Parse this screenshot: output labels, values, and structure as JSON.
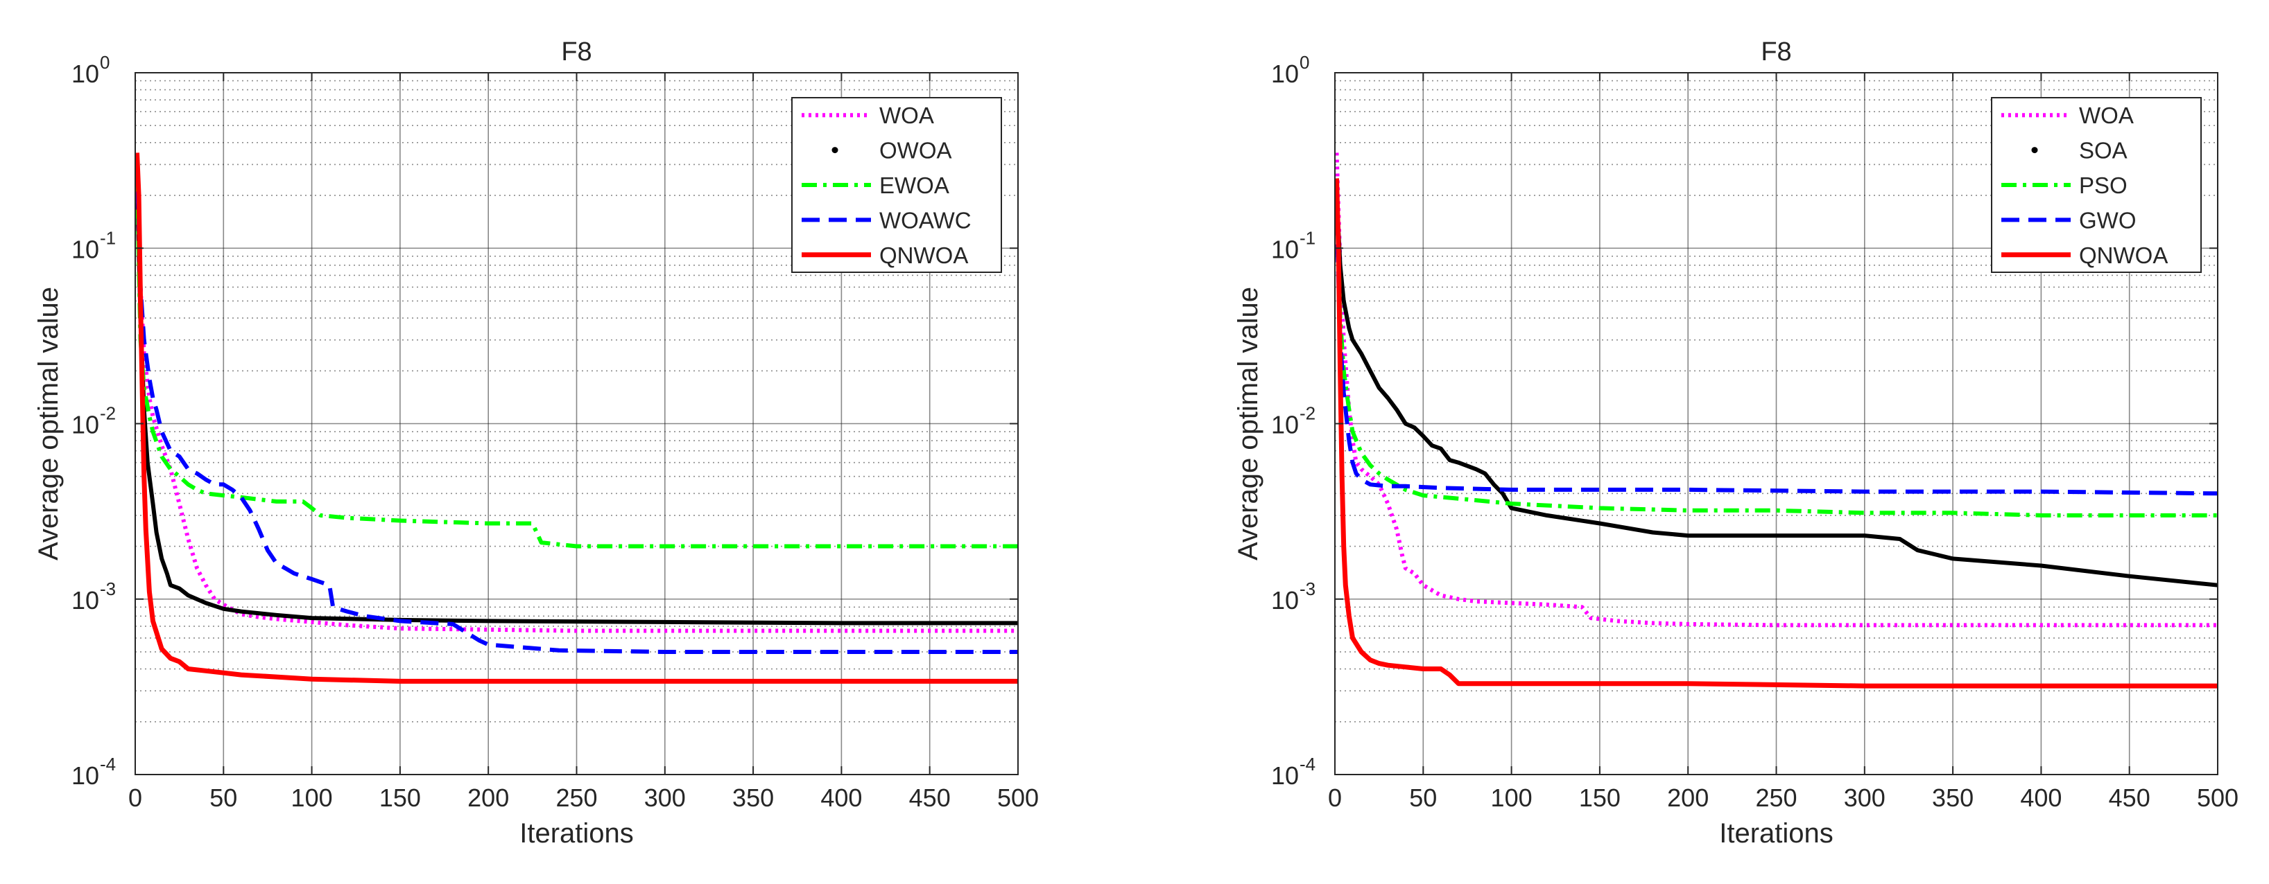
{
  "chart_data": [
    {
      "type": "line",
      "title": "F8",
      "xlabel": "Iterations",
      "ylabel": "Average optimal value",
      "yscale": "log",
      "xlim": [
        0,
        500
      ],
      "ylim": [
        0.0001,
        1
      ],
      "xticks": [
        0,
        50,
        100,
        150,
        200,
        250,
        300,
        350,
        400,
        450,
        500
      ],
      "ytick_labels": [
        {
          "value": 1,
          "base": "10",
          "exp": "0"
        },
        {
          "value": 0.1,
          "base": "10",
          "exp": "-1"
        },
        {
          "value": 0.01,
          "base": "10",
          "exp": "-2"
        },
        {
          "value": 0.001,
          "base": "10",
          "exp": "-3"
        },
        {
          "value": 0.0001,
          "base": "10",
          "exp": "-4"
        }
      ],
      "grid": true,
      "legend_position": "top-right",
      "series": [
        {
          "name": "WOA",
          "color": "#ff00ff",
          "style": "dotted",
          "x": [
            1,
            3,
            5,
            8,
            10,
            15,
            20,
            25,
            30,
            35,
            40,
            45,
            50,
            60,
            70,
            80,
            100,
            120,
            150,
            200,
            250,
            300,
            400,
            500
          ],
          "y": [
            0.3,
            0.06,
            0.025,
            0.014,
            0.011,
            0.0075,
            0.0055,
            0.0035,
            0.0022,
            0.0015,
            0.0012,
            0.001,
            0.00093,
            0.00082,
            0.00079,
            0.00077,
            0.00074,
            0.00071,
            0.00068,
            0.00067,
            0.00066,
            0.00066,
            0.00066,
            0.00066
          ]
        },
        {
          "name": "OWOA",
          "color": "#000000",
          "style": "dots",
          "x": [
            1,
            3,
            5,
            7,
            10,
            12,
            15,
            18,
            20,
            25,
            30,
            40,
            50,
            60,
            80,
            100,
            150,
            200,
            300,
            400,
            500
          ],
          "y": [
            0.25,
            0.04,
            0.012,
            0.006,
            0.0035,
            0.0024,
            0.0017,
            0.0014,
            0.0012,
            0.00115,
            0.00105,
            0.00095,
            0.00088,
            0.00085,
            0.00081,
            0.00078,
            0.00076,
            0.00075,
            0.00074,
            0.00073,
            0.00073
          ]
        },
        {
          "name": "EWOA",
          "color": "#00ff00",
          "style": "dashdot",
          "x": [
            1,
            3,
            5,
            8,
            10,
            15,
            20,
            25,
            30,
            35,
            40,
            50,
            60,
            70,
            80,
            90,
            95,
            100,
            105,
            120,
            150,
            200,
            225,
            230,
            250,
            300,
            400,
            500
          ],
          "y": [
            0.25,
            0.03,
            0.016,
            0.011,
            0.009,
            0.0065,
            0.0055,
            0.005,
            0.0045,
            0.0042,
            0.004,
            0.0039,
            0.0038,
            0.0037,
            0.0036,
            0.0036,
            0.0036,
            0.0033,
            0.003,
            0.0029,
            0.0028,
            0.0027,
            0.0027,
            0.0021,
            0.002,
            0.002,
            0.002,
            0.002
          ]
        },
        {
          "name": "WOAWC",
          "color": "#0000ff",
          "style": "dashed",
          "x": [
            1,
            3,
            5,
            8,
            10,
            12,
            15,
            20,
            25,
            30,
            35,
            40,
            45,
            50,
            55,
            60,
            65,
            70,
            75,
            80,
            85,
            90,
            100,
            110,
            112,
            120,
            130,
            150,
            180,
            195,
            200,
            220,
            240,
            300,
            400,
            500
          ],
          "y": [
            0.3,
            0.06,
            0.03,
            0.018,
            0.014,
            0.012,
            0.009,
            0.007,
            0.0065,
            0.0055,
            0.0052,
            0.0048,
            0.0045,
            0.0045,
            0.0042,
            0.0038,
            0.0032,
            0.0025,
            0.0019,
            0.0016,
            0.0015,
            0.0014,
            0.0013,
            0.0012,
            0.0009,
            0.00085,
            0.0008,
            0.00075,
            0.00072,
            0.00058,
            0.00055,
            0.00053,
            0.00051,
            0.0005,
            0.0005,
            0.0005
          ]
        },
        {
          "name": "QNWOA",
          "color": "#ff0000",
          "style": "solid",
          "x": [
            1,
            2,
            3,
            4,
            5,
            6,
            8,
            10,
            15,
            20,
            25,
            30,
            40,
            50,
            60,
            80,
            100,
            150,
            200,
            300,
            400,
            500
          ],
          "y": [
            0.35,
            0.2,
            0.05,
            0.015,
            0.005,
            0.0025,
            0.0011,
            0.00075,
            0.00052,
            0.00046,
            0.00044,
            0.0004,
            0.00039,
            0.00038,
            0.00037,
            0.00036,
            0.00035,
            0.00034,
            0.00034,
            0.00034,
            0.00034,
            0.00034
          ]
        }
      ]
    },
    {
      "type": "line",
      "title": "F8",
      "xlabel": "Iterations",
      "ylabel": "Average optimal value",
      "yscale": "log",
      "xlim": [
        0,
        500
      ],
      "ylim": [
        0.0001,
        1
      ],
      "xticks": [
        0,
        50,
        100,
        150,
        200,
        250,
        300,
        350,
        400,
        450,
        500
      ],
      "ytick_labels": [
        {
          "value": 1,
          "base": "10",
          "exp": "0"
        },
        {
          "value": 0.1,
          "base": "10",
          "exp": "-1"
        },
        {
          "value": 0.01,
          "base": "10",
          "exp": "-2"
        },
        {
          "value": 0.001,
          "base": "10",
          "exp": "-3"
        },
        {
          "value": 0.0001,
          "base": "10",
          "exp": "-4"
        }
      ],
      "grid": true,
      "legend_position": "top-right",
      "series": [
        {
          "name": "WOA",
          "color": "#ff00ff",
          "style": "dotted",
          "x": [
            1,
            3,
            5,
            8,
            10,
            12,
            15,
            20,
            25,
            30,
            35,
            38,
            40,
            45,
            50,
            60,
            70,
            80,
            100,
            120,
            140,
            145,
            160,
            180,
            200,
            250,
            300,
            400,
            500
          ],
          "y": [
            0.35,
            0.08,
            0.03,
            0.012,
            0.008,
            0.006,
            0.0055,
            0.005,
            0.0045,
            0.0035,
            0.0025,
            0.0018,
            0.0015,
            0.0014,
            0.0012,
            0.00105,
            0.001,
            0.00097,
            0.00095,
            0.00093,
            0.0009,
            0.00078,
            0.00075,
            0.00073,
            0.00072,
            0.00071,
            0.00071,
            0.00071,
            0.00071
          ]
        },
        {
          "name": "SOA",
          "color": "#000000",
          "style": "dots",
          "x": [
            1,
            3,
            5,
            8,
            10,
            15,
            20,
            25,
            30,
            35,
            40,
            45,
            50,
            55,
            60,
            65,
            70,
            80,
            85,
            90,
            95,
            100,
            120,
            150,
            180,
            200,
            250,
            300,
            320,
            330,
            350,
            400,
            450,
            500
          ],
          "y": [
            0.2,
            0.08,
            0.05,
            0.035,
            0.03,
            0.025,
            0.02,
            0.016,
            0.014,
            0.012,
            0.01,
            0.0095,
            0.0085,
            0.0075,
            0.0072,
            0.0062,
            0.006,
            0.0055,
            0.0052,
            0.0045,
            0.004,
            0.0033,
            0.003,
            0.0027,
            0.0024,
            0.0023,
            0.0023,
            0.0023,
            0.0022,
            0.0019,
            0.0017,
            0.00155,
            0.00135,
            0.0012
          ]
        },
        {
          "name": "PSO",
          "color": "#00ff00",
          "style": "dashdot",
          "x": [
            1,
            3,
            5,
            8,
            10,
            15,
            20,
            25,
            30,
            40,
            50,
            75,
            100,
            150,
            200,
            250,
            300,
            350,
            400,
            450,
            500
          ],
          "y": [
            0.25,
            0.04,
            0.02,
            0.012,
            0.009,
            0.0068,
            0.0058,
            0.0052,
            0.0048,
            0.0042,
            0.0039,
            0.0037,
            0.0035,
            0.0033,
            0.0032,
            0.0032,
            0.0031,
            0.0031,
            0.003,
            0.003,
            0.003
          ]
        },
        {
          "name": "GWO",
          "color": "#0000ff",
          "style": "dashed",
          "x": [
            1,
            3,
            5,
            8,
            10,
            12,
            15,
            20,
            30,
            40,
            60,
            100,
            150,
            200,
            300,
            400,
            500
          ],
          "y": [
            0.15,
            0.03,
            0.015,
            0.008,
            0.006,
            0.0052,
            0.0048,
            0.0045,
            0.0044,
            0.0044,
            0.0043,
            0.0042,
            0.0042,
            0.0042,
            0.0041,
            0.0041,
            0.004
          ]
        },
        {
          "name": "QNWOA",
          "color": "#ff0000",
          "style": "solid",
          "x": [
            1,
            2,
            3,
            4,
            5,
            6,
            8,
            10,
            15,
            20,
            25,
            30,
            40,
            50,
            60,
            65,
            70,
            80,
            100,
            150,
            200,
            300,
            400,
            500
          ],
          "y": [
            0.25,
            0.1,
            0.02,
            0.005,
            0.002,
            0.0012,
            0.0008,
            0.0006,
            0.0005,
            0.00045,
            0.00043,
            0.00042,
            0.00041,
            0.0004,
            0.0004,
            0.00037,
            0.00033,
            0.00033,
            0.00033,
            0.00033,
            0.00033,
            0.00032,
            0.00032,
            0.00032
          ]
        }
      ]
    }
  ]
}
